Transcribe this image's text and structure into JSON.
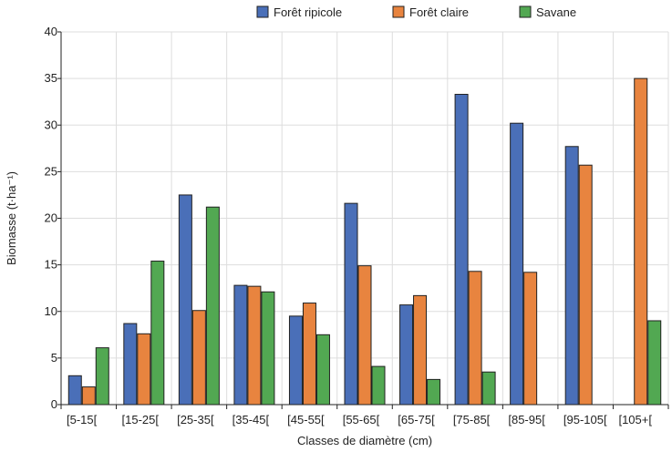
{
  "chart_data": {
    "type": "bar",
    "categories": [
      "[5-15[",
      "[15-25[",
      "[25-35[",
      "[35-45[",
      "[45-55[",
      "[55-65[",
      "[65-75[",
      "[75-85[",
      "[85-95[",
      "[95-105[",
      "[105+["
    ],
    "series": [
      {
        "name": "Forêt ripicole",
        "color": "#4a6fb8",
        "values": [
          3.1,
          8.7,
          22.5,
          12.8,
          9.5,
          21.6,
          10.7,
          33.3,
          30.2,
          27.7,
          null
        ]
      },
      {
        "name": "Forêt claire",
        "color": "#e8843f",
        "values": [
          1.9,
          7.6,
          10.1,
          12.7,
          10.9,
          14.9,
          11.7,
          14.3,
          14.2,
          25.7,
          35.0
        ]
      },
      {
        "name": "Savane",
        "color": "#52a852",
        "values": [
          6.1,
          15.4,
          21.2,
          12.1,
          7.5,
          4.1,
          2.7,
          3.5,
          null,
          null,
          9.0
        ]
      }
    ],
    "xlabel": "Classes de diamètre (cm)",
    "ylabel": "Biomasse (t·ha⁻¹)",
    "ylim": [
      0,
      40
    ],
    "yticks": [
      0,
      5,
      10,
      15,
      20,
      25,
      30,
      35,
      40
    ],
    "grid": true,
    "legend": "top-center"
  }
}
